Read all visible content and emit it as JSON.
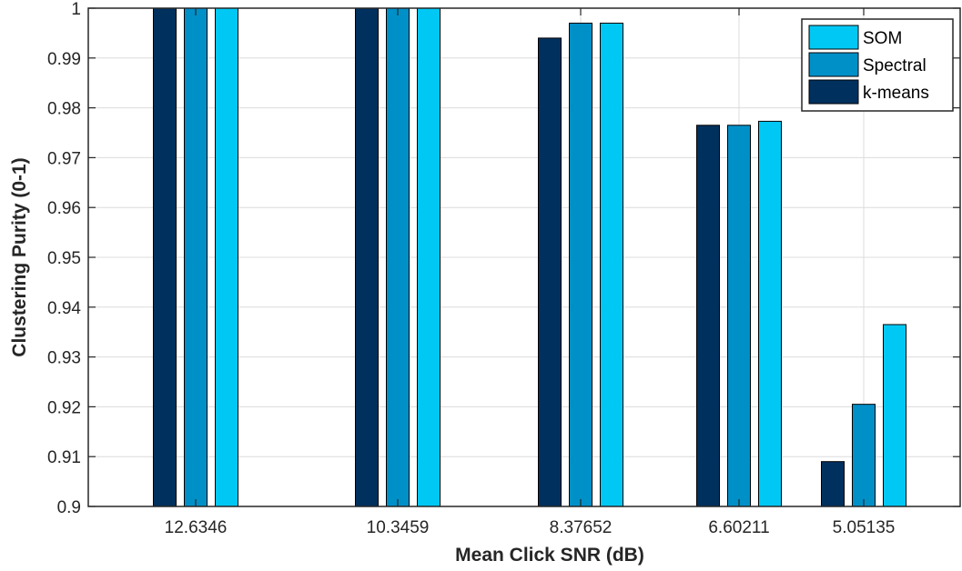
{
  "chart_data": {
    "type": "bar",
    "title": "",
    "xlabel": "Mean Click SNR (dB)",
    "ylabel": "Clustering Purity (0-1)",
    "ylim": [
      0.9,
      1.0
    ],
    "yticks": [
      "0.9",
      "0.91",
      "0.92",
      "0.93",
      "0.94",
      "0.95",
      "0.96",
      "0.97",
      "0.98",
      "0.99",
      "1"
    ],
    "grid": true,
    "legend_position": "top-right",
    "categories": [
      "12.6346",
      "10.3459",
      "8.37652",
      "6.60211",
      "5.05135"
    ],
    "series": [
      {
        "name": "k-means",
        "color": "#00305e",
        "values": [
          1.0,
          1.0,
          0.994,
          0.9765,
          0.909
        ]
      },
      {
        "name": "Spectral",
        "color": "#0090c8",
        "values": [
          1.0,
          1.0,
          0.997,
          0.9765,
          0.9205
        ]
      },
      {
        "name": "SOM",
        "color": "#00c8f4",
        "values": [
          1.0,
          1.0,
          0.997,
          0.9773,
          0.9365
        ]
      }
    ],
    "legend_order": [
      "SOM",
      "Spectral",
      "k-means"
    ]
  }
}
